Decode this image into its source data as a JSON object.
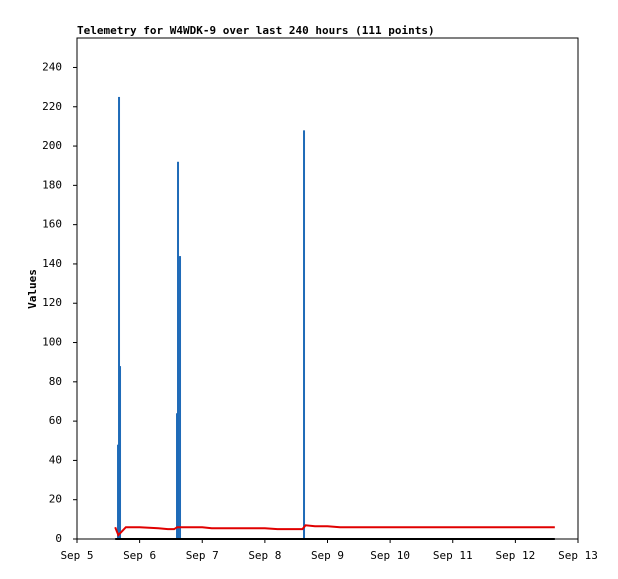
{
  "chart_data": {
    "type": "combo",
    "title": "Telemetry for W4WDK-9 over last 240 hours (111 points)",
    "y_label": "Values",
    "xlim": [
      5,
      13
    ],
    "xticks": [
      {
        "value": 5,
        "label": "Sep 5"
      },
      {
        "value": 6,
        "label": "Sep 6"
      },
      {
        "value": 7,
        "label": "Sep 7"
      },
      {
        "value": 8,
        "label": "Sep 8"
      },
      {
        "value": 9,
        "label": "Sep 9"
      },
      {
        "value": 10,
        "label": "Sep 10"
      },
      {
        "value": 11,
        "label": "Sep 11"
      },
      {
        "value": 12,
        "label": "Sep 12"
      },
      {
        "value": 13,
        "label": "Sep 13"
      }
    ],
    "ylim": [
      0,
      255
    ],
    "yticks": [
      0,
      20,
      40,
      60,
      80,
      100,
      120,
      140,
      160,
      180,
      200,
      220,
      240
    ],
    "series": [
      {
        "type": "bar",
        "color": "#1f6bb8",
        "x": [
          5.655,
          5.671,
          5.687,
          6.597,
          6.613,
          6.645,
          8.625
        ],
        "values": [
          48,
          225,
          88,
          64,
          192,
          144,
          208
        ]
      },
      {
        "type": "line",
        "color": "#000000",
        "x": [
          5.61,
          12.63
        ],
        "values": [
          0,
          0
        ]
      },
      {
        "type": "line",
        "color": "#e00000",
        "x": [
          5.61,
          5.66,
          5.72,
          5.78,
          6.0,
          6.3,
          6.45,
          6.55,
          6.6,
          7.0,
          7.15,
          7.5,
          8.0,
          8.2,
          8.6,
          8.65,
          8.8,
          9.0,
          9.2,
          10,
          11,
          12,
          12.63
        ],
        "values": [
          6,
          2,
          4,
          6,
          6,
          5.5,
          5,
          5,
          6,
          6,
          5.5,
          5.5,
          5.5,
          5,
          5,
          7,
          6.5,
          6.5,
          6,
          6,
          6,
          6,
          6
        ]
      }
    ]
  }
}
